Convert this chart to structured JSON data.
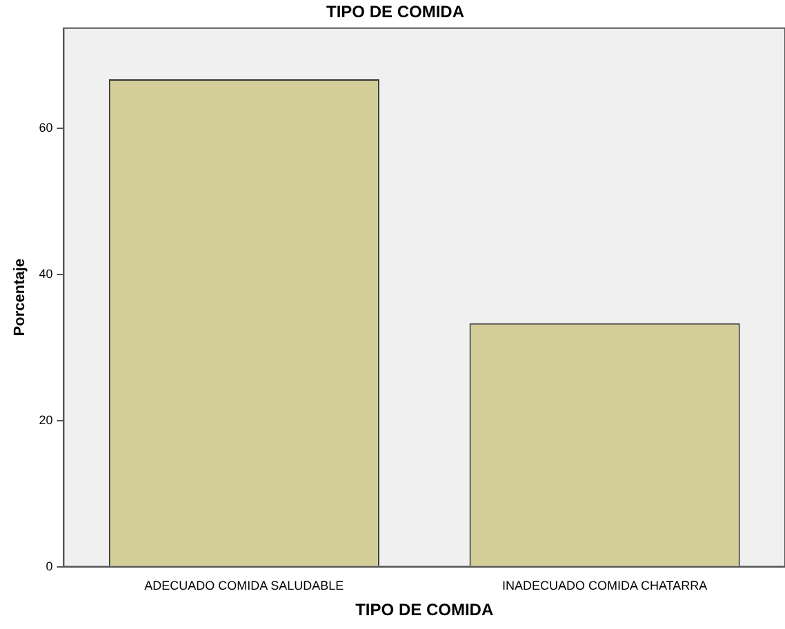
{
  "chart_data": {
    "type": "bar",
    "title": "TIPO DE COMIDA",
    "xlabel": "TIPO DE COMIDA",
    "ylabel": "Porcentaje",
    "categories": [
      "ADECUADO COMIDA SALUDABLE",
      "INADECUADO COMIDA CHATARRA"
    ],
    "values": [
      66.7,
      33.3
    ],
    "color": "#d3ce97",
    "ylim": [
      0,
      73.7
    ],
    "yticks": [
      0,
      20,
      40,
      60
    ],
    "grid": false,
    "legend": false
  }
}
